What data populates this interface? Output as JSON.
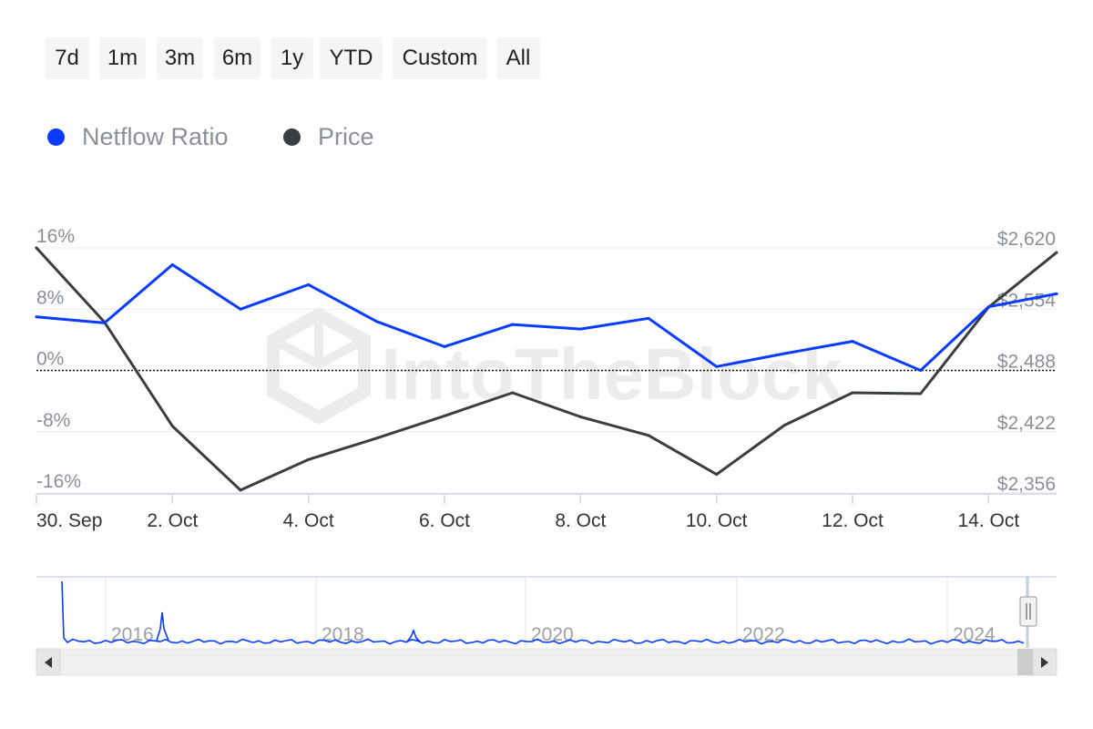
{
  "range_selector": {
    "buttons": [
      {
        "label": "7d"
      },
      {
        "label": "1m"
      },
      {
        "label": "3m"
      },
      {
        "label": "6m"
      },
      {
        "label": "1y"
      },
      {
        "label": "YTD"
      },
      {
        "label": "Custom"
      },
      {
        "label": "All"
      }
    ]
  },
  "legend": {
    "items": [
      {
        "label": "Netflow Ratio",
        "color": "#0a3cff"
      },
      {
        "label": "Price",
        "color": "#3a3e42"
      }
    ]
  },
  "watermark": "IntoTheBlock",
  "chart_data": {
    "type": "line",
    "x": [
      "2024-09-30",
      "2024-10-01",
      "2024-10-02",
      "2024-10-03",
      "2024-10-04",
      "2024-10-05",
      "2024-10-06",
      "2024-10-07",
      "2024-10-08",
      "2024-10-09",
      "2024-10-10",
      "2024-10-11",
      "2024-10-12",
      "2024-10-13",
      "2024-10-14",
      "2024-10-15"
    ],
    "x_tick_labels": [
      "30. Sep",
      "2. Oct",
      "4. Oct",
      "6. Oct",
      "8. Oct",
      "10. Oct",
      "12. Oct",
      "14. Oct"
    ],
    "series": [
      {
        "name": "Netflow Ratio",
        "axis": "left",
        "color": "#0a3cff",
        "values": [
          7.0,
          6.2,
          13.8,
          8.0,
          11.2,
          6.4,
          3.1,
          6.0,
          5.4,
          6.8,
          0.5,
          2.2,
          3.8,
          0.0,
          8.3,
          10.0
        ]
      },
      {
        "name": "Price",
        "axis": "right",
        "color": "#3a3e42",
        "values": [
          2620,
          2540,
          2428,
          2359,
          2392,
          2415,
          2439,
          2464,
          2438,
          2418,
          2376,
          2429,
          2464,
          2463,
          2556,
          2615
        ]
      }
    ],
    "y_left": {
      "ticks": [
        -16,
        -8,
        0,
        8,
        16
      ],
      "tick_labels": [
        "-16%",
        "-8%",
        "0%",
        "8%",
        "16%"
      ],
      "range": [
        -16,
        16
      ]
    },
    "y_right": {
      "ticks": [
        2356,
        2422,
        2488,
        2554,
        2620
      ],
      "tick_labels": [
        "$2,356",
        "$2,422",
        "$2,488",
        "$2,554",
        "$2,620"
      ],
      "range": [
        2356,
        2620
      ]
    },
    "zero_line": "dotted",
    "grid": true,
    "legend_position": "top-left",
    "navigator": {
      "year_labels": [
        "2016",
        "2018",
        "2020",
        "2022",
        "2024"
      ],
      "years": [
        2016,
        2018,
        2020,
        2022,
        2024
      ],
      "series_color": "#0a3cff"
    }
  }
}
